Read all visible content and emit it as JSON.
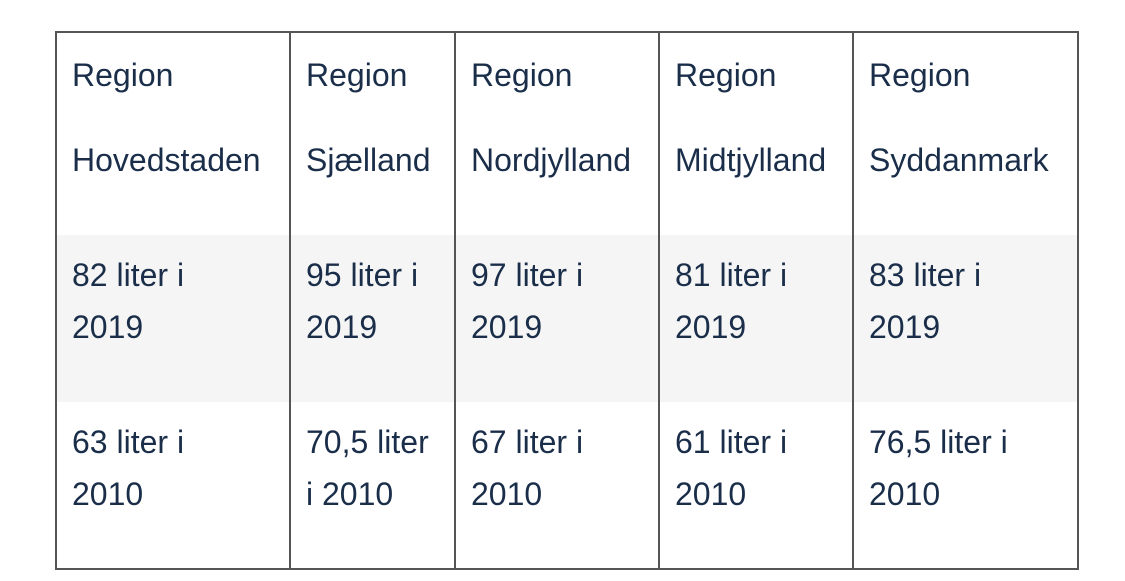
{
  "table": {
    "headers": [
      {
        "line1": "Region",
        "line2": "Hovedstaden"
      },
      {
        "line1": "Region",
        "line2": "Sjælland"
      },
      {
        "line1": "Region",
        "line2": "Nordjylland"
      },
      {
        "line1": "Region",
        "line2": "Midtjylland"
      },
      {
        "line1": "Region",
        "line2": "Syddanmark"
      }
    ],
    "rows": [
      [
        {
          "line1": "82 liter i",
          "line2": "2019"
        },
        {
          "line1": "95 liter i",
          "line2": "2019"
        },
        {
          "line1": "97 liter i",
          "line2": "2019"
        },
        {
          "line1": "81 liter i",
          "line2": "2019"
        },
        {
          "line1": "83 liter i",
          "line2": "2019"
        }
      ],
      [
        {
          "line1": "63 liter i",
          "line2": "2010"
        },
        {
          "line1": "70,5 liter",
          "line2": "i 2010"
        },
        {
          "line1": "67 liter i",
          "line2": "2010"
        },
        {
          "line1": "61 liter i",
          "line2": "2010"
        },
        {
          "line1": "76,5 liter i",
          "line2": "2010"
        }
      ]
    ]
  },
  "colors": {
    "text": "#1a2e4a",
    "border": "#555555",
    "stripe": "#f5f5f5"
  }
}
